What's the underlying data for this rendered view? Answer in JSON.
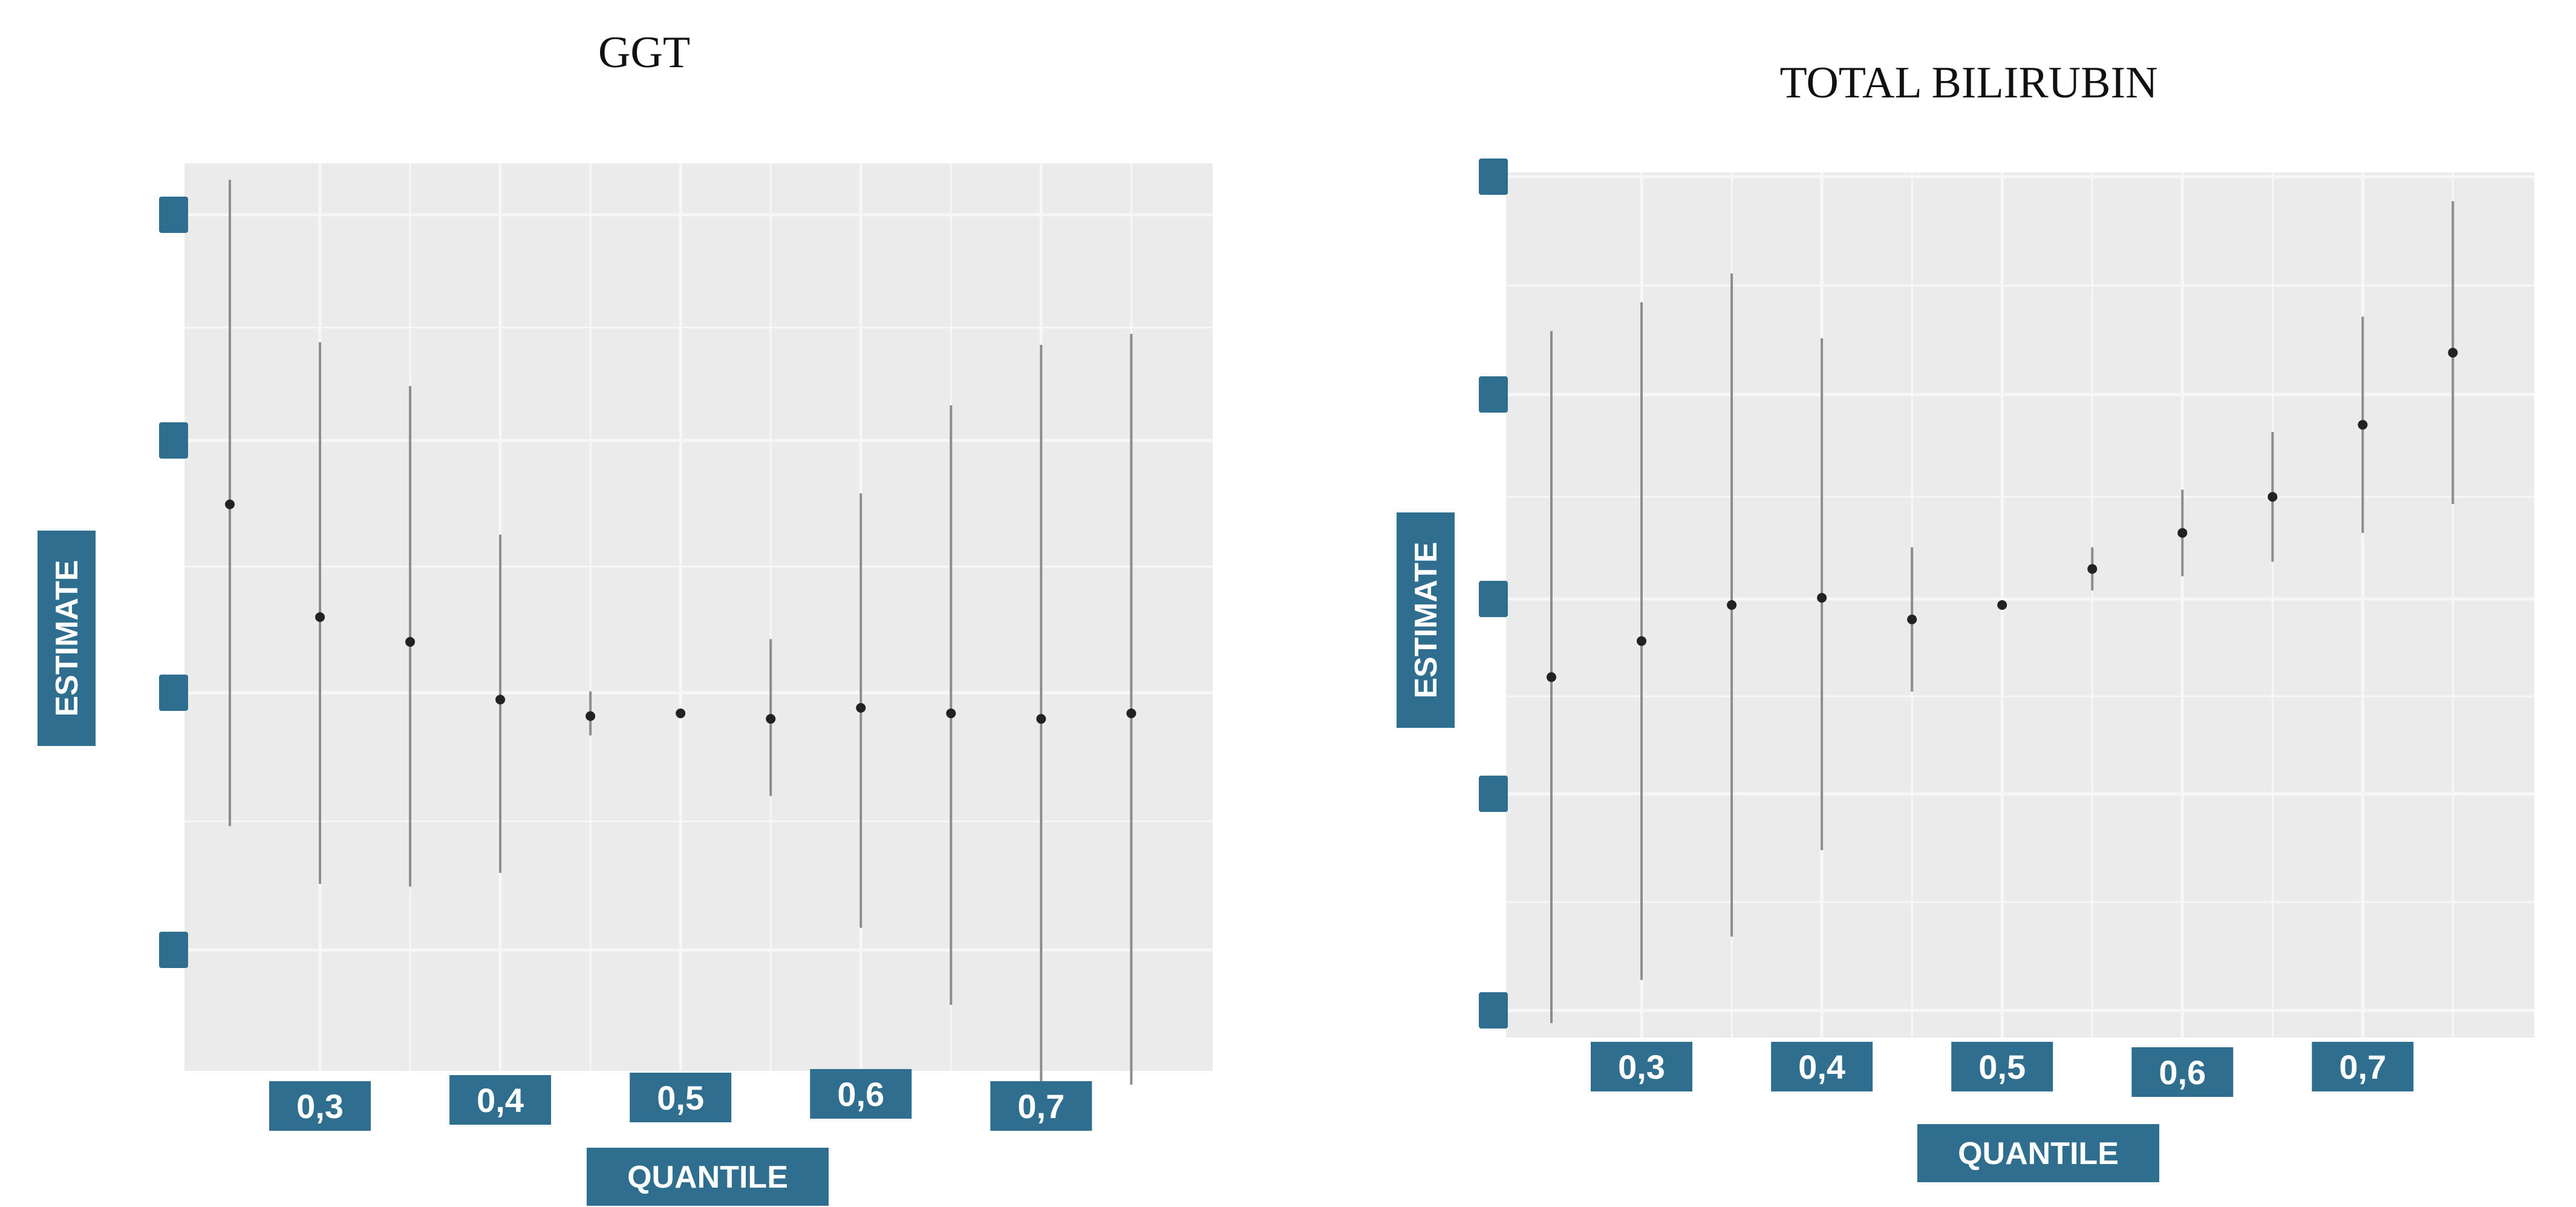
{
  "colors": {
    "panel_bg": "#ebebeb",
    "grid_line": "#f7f7f7",
    "label_bg": "#2f6e8e",
    "label_text": "#ffffff",
    "point": "#222222",
    "error_bar": "#8c8c8c"
  },
  "chart_data": [
    {
      "type": "scatter",
      "title": "GGT",
      "xlabel": "QUANTILE",
      "ylabel": "ESTIMATE",
      "x_tick_labels": [
        "0,3",
        "0,4",
        "0,5",
        "0,6",
        "0,7"
      ],
      "y_tick_labels": [
        "",
        "",
        "",
        ""
      ],
      "grid": true,
      "legend": "none",
      "xlim": [
        0.25,
        0.77
      ],
      "ylim": [
        -1.3,
        2.0
      ],
      "series": [
        {
          "x": [
            0.25,
            0.3,
            0.35,
            0.4,
            0.45,
            0.5,
            0.55,
            0.6,
            0.65,
            0.7,
            0.75
          ],
          "y": [
            0.76,
            0.35,
            0.26,
            0.05,
            -0.01,
            0.0,
            -0.02,
            0.02,
            0.0,
            -0.02,
            0.0
          ],
          "lower": [
            -0.41,
            -0.62,
            -0.63,
            -0.58,
            -0.08,
            -0.01,
            -0.3,
            -0.78,
            -1.06,
            -1.38,
            -1.35
          ],
          "upper": [
            1.94,
            1.35,
            1.19,
            0.65,
            0.08,
            0.01,
            0.27,
            0.8,
            1.12,
            1.34,
            1.38
          ]
        }
      ]
    },
    {
      "type": "scatter",
      "title": "TOTAL BILIRUBIN",
      "xlabel": "QUANTILE",
      "ylabel": "ESTIMATE",
      "x_tick_labels": [
        "0,3",
        "0,4",
        "0,5",
        "0,6",
        "0,7"
      ],
      "y_tick_labels": [
        "",
        "",
        "",
        "",
        ""
      ],
      "grid": true,
      "legend": "none",
      "xlim": [
        0.25,
        0.77
      ],
      "ylim": [
        -0.6,
        0.6
      ],
      "series": [
        {
          "x": [
            0.25,
            0.3,
            0.35,
            0.4,
            0.45,
            0.5,
            0.55,
            0.6,
            0.65,
            0.7,
            0.75
          ],
          "y": [
            -0.1,
            -0.05,
            0.0,
            0.01,
            -0.02,
            0.0,
            0.05,
            0.1,
            0.15,
            0.25,
            0.35
          ],
          "lower": [
            -0.58,
            -0.52,
            -0.46,
            -0.34,
            -0.12,
            0.0,
            0.02,
            0.04,
            0.06,
            0.1,
            0.14
          ],
          "upper": [
            0.38,
            0.42,
            0.46,
            0.37,
            0.08,
            0.0,
            0.08,
            0.16,
            0.24,
            0.4,
            0.56
          ]
        }
      ]
    }
  ]
}
